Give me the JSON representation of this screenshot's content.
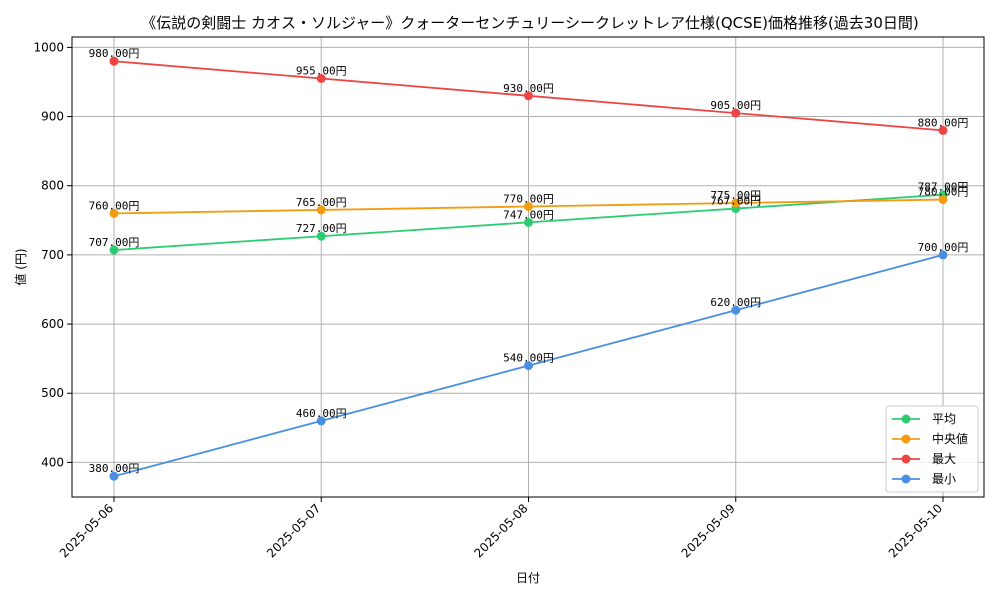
{
  "chart_data": {
    "type": "line",
    "title": "《伝説の剣闘士 カオス・ソルジャー》クォーターセンチュリーシークレットレア仕様(QCSE)価格推移(過去30日間)",
    "xlabel": "日付",
    "ylabel": "値 (円)",
    "categories": [
      "2025-05-06",
      "2025-05-07",
      "2025-05-08",
      "2025-05-09",
      "2025-05-10"
    ],
    "ylim": [
      350,
      1015
    ],
    "yticks": [
      400,
      500,
      600,
      700,
      800,
      900,
      1000
    ],
    "grid": true,
    "legend_position": "bottom-right",
    "value_suffix": "円",
    "series": [
      {
        "name": "平均",
        "color": "#2ecc71",
        "values": [
          707,
          727,
          747,
          767,
          787
        ]
      },
      {
        "name": "中央値",
        "color": "#f39c12",
        "values": [
          760,
          765,
          770,
          775,
          780
        ]
      },
      {
        "name": "最大",
        "color": "#ef4444",
        "values": [
          980,
          955,
          930,
          905,
          880
        ]
      },
      {
        "name": "最小",
        "color": "#4a90e2",
        "values": [
          380,
          460,
          540,
          620,
          700
        ]
      }
    ]
  }
}
